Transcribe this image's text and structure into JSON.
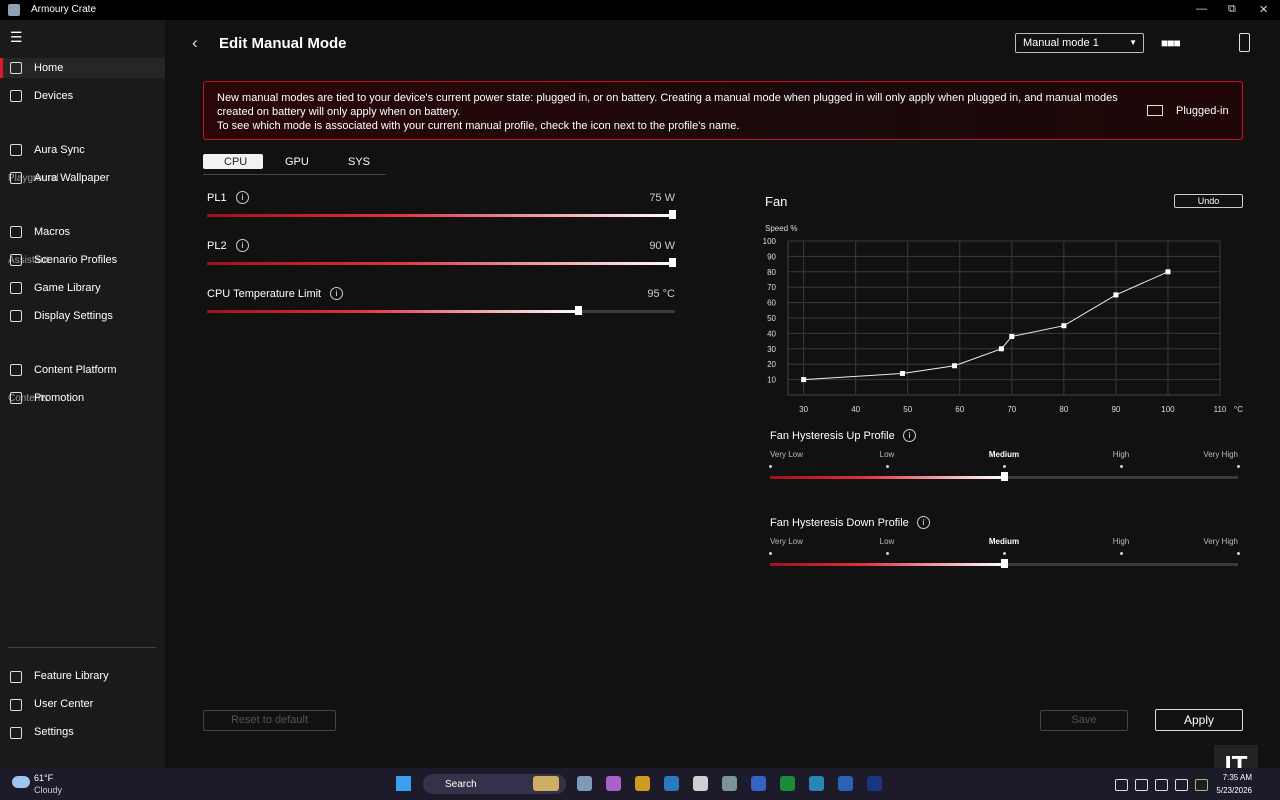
{
  "window": {
    "title": "Armoury Crate"
  },
  "sidebar": {
    "groups": [
      {
        "items": [
          "Home",
          "Devices"
        ]
      },
      {
        "heading": "Playground",
        "items": [
          "Aura Sync",
          "Aura Wallpaper"
        ]
      },
      {
        "heading": "Assistant",
        "items": [
          "Macros",
          "Scenario Profiles",
          "Game Library",
          "Display Settings"
        ]
      },
      {
        "heading": "Contents",
        "items": [
          "Content Platform",
          "Promotion"
        ]
      }
    ],
    "bottom_items": [
      "Feature Library",
      "User Center",
      "Settings"
    ]
  },
  "header": {
    "title": "Edit Manual Mode",
    "mode_select": "Manual mode 1"
  },
  "notice": {
    "lines": [
      "New manual modes are tied to your device's current power state: plugged in, or on battery. Creating a manual mode when plugged in will only apply when plugged in, and manual modes",
      "created on battery will only apply when on battery.",
      "To see which mode is associated with your current manual profile, check the icon next to the profile's name."
    ],
    "status": "Plugged-in"
  },
  "tabs": [
    "CPU",
    "GPU",
    "SYS"
  ],
  "sliders": [
    {
      "label": "PL1",
      "value": "75 W"
    },
    {
      "label": "PL2",
      "value": "90 W"
    },
    {
      "label": "CPU Temperature Limit",
      "value": "95 °C"
    }
  ],
  "fan": {
    "title": "Fan",
    "undo": "Undo",
    "chart": {
      "type": "line",
      "y_label": "Speed %",
      "x_unit": "°C",
      "x": [
        30,
        49,
        59,
        68,
        70,
        80,
        90,
        100
      ],
      "values": [
        10,
        14,
        19,
        30,
        38,
        45,
        65,
        80
      ],
      "xlim": [
        27,
        110
      ],
      "ylim": [
        0,
        100
      ],
      "xticks": [
        30,
        40,
        50,
        60,
        70,
        80,
        90,
        100,
        110
      ],
      "yticks": [
        10,
        20,
        30,
        40,
        50,
        60,
        70,
        80,
        90,
        100
      ],
      "grid": true
    },
    "hysteresis": [
      {
        "label": "Fan Hysteresis Up Profile",
        "levels": [
          "Very Low",
          "Low",
          "Medium",
          "High",
          "Very High"
        ],
        "selected": 2
      },
      {
        "label": "Fan Hysteresis Down Profile",
        "levels": [
          "Very Low",
          "Low",
          "Medium",
          "High",
          "Very High"
        ],
        "selected": 2
      }
    ]
  },
  "buttons": {
    "reset": "Reset to default",
    "save": "Save",
    "apply": "Apply"
  },
  "taskbar": {
    "temperature": "61°F",
    "weather": "Cloudy",
    "search": "Search",
    "time": "7:35 AM",
    "date": "5/23/2026",
    "watermark": "IT"
  }
}
